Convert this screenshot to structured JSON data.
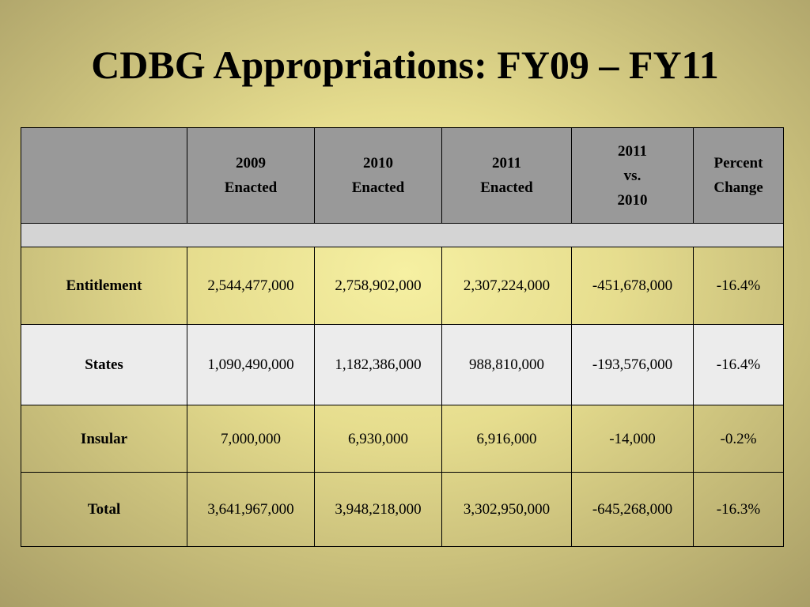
{
  "title": "CDBG Appropriations: FY09 – FY11",
  "table": {
    "corner": "",
    "columns": [
      [
        "2009",
        "Enacted"
      ],
      [
        "2010",
        "Enacted"
      ],
      [
        "2011",
        "Enacted"
      ],
      [
        "2011",
        "vs.",
        "2010"
      ],
      [
        "Percent",
        "Change"
      ]
    ],
    "rows": [
      {
        "label": "Entitlement",
        "values": [
          "2,544,477,000",
          "2,758,902,000",
          "2,307,224,000",
          "-451,678,000",
          "-16.4%"
        ],
        "shade": "dark"
      },
      {
        "label": "States",
        "values": [
          "1,090,490,000",
          "1,182,386,000",
          "988,810,000",
          "-193,576,000",
          "-16.4%"
        ],
        "shade": "light"
      },
      {
        "label": "Insular",
        "values": [
          "7,000,000",
          "6,930,000",
          "6,916,000",
          "-14,000",
          "-0.2%"
        ],
        "shade": "dark"
      },
      {
        "label": "Total",
        "values": [
          "3,641,967,000",
          "3,948,218,000",
          "3,302,950,000",
          "-645,268,000",
          "-16.3%"
        ],
        "shade": "dark"
      }
    ]
  }
}
